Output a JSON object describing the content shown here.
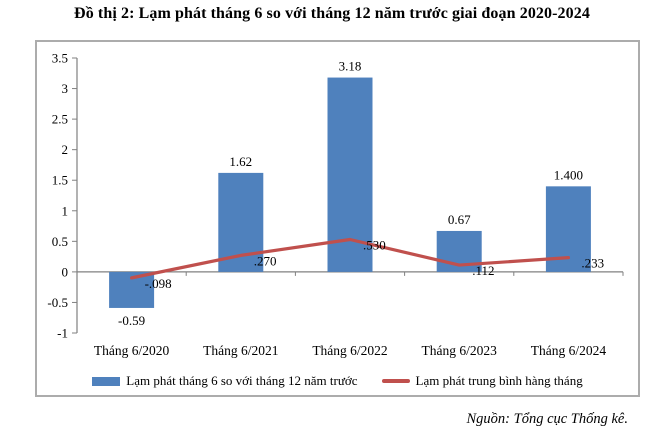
{
  "title": "Đồ thị 2: Lạm phát tháng 6 so với tháng 12 năm trước giai đoạn 2020-2024",
  "source": "Nguồn: Tổng cục Thống kê.",
  "colors": {
    "bar": "#4F81BD",
    "line": "#C0504D",
    "axis": "#808080",
    "frame_border": "#ACACAC",
    "text": "#000000"
  },
  "legend": {
    "bar_label": "Lạm phát tháng 6 so với tháng 12 năm trước",
    "line_label": "Lạm phát trung bình hàng tháng"
  },
  "chart_data": {
    "type": "bar",
    "subtype": "bar+line combo",
    "title": "Đồ thị 2: Lạm phát tháng 6 so với tháng 12 năm trước giai đoạn 2020-2024",
    "xlabel": "",
    "ylabel": "",
    "categories": [
      "Tháng 6/2020",
      "Tháng 6/2021",
      "Tháng 6/2022",
      "Tháng 6/2023",
      "Tháng 6/2024"
    ],
    "series": [
      {
        "name": "Lạm phát tháng 6 so với tháng 12 năm trước",
        "type": "bar",
        "values": [
          -0.59,
          1.62,
          3.18,
          0.67,
          1.4
        ],
        "labels": [
          "-0.59",
          "1.62",
          "3.18",
          "0.67",
          "1.400"
        ],
        "color": "#4F81BD"
      },
      {
        "name": "Lạm phát trung bình hàng tháng",
        "type": "line",
        "values": [
          -0.098,
          0.27,
          0.53,
          0.112,
          0.233
        ],
        "labels": [
          "-.098",
          ".270",
          ".530",
          ".112",
          ".233"
        ],
        "color": "#C0504D"
      }
    ],
    "ylim": [
      -1,
      3.5
    ],
    "ytick_step": 0.5,
    "ytick_labels": [
      "3.5",
      "3",
      "2.5",
      "2",
      "1.5",
      "1",
      "0.5",
      "0",
      "-0.5",
      "-1"
    ],
    "grid": false,
    "legend_position": "bottom"
  }
}
